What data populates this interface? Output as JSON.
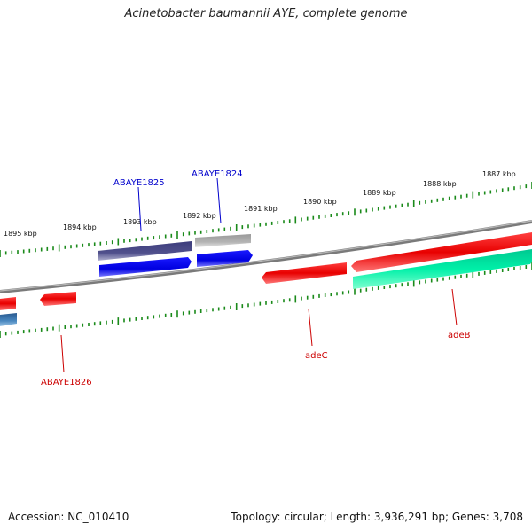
{
  "title": "Acinetobacter baumannii AYE, complete genome",
  "footer": {
    "accession": "Accession: NC_010410",
    "summary": "Topology: circular; Length: 3,936,291 bp; Genes: 3,708"
  },
  "kbp_labels": [
    "1895 kbp",
    "1894 kbp",
    "1893 kbp",
    "1892 kbp",
    "1891 kbp",
    "1890 kbp",
    "1889 kbp",
    "1888 kbp",
    "1887 kbp"
  ],
  "genes": [
    {
      "name": "ABAYE1825",
      "color": "#0000cc"
    },
    {
      "name": "ABAYE1824",
      "color": "#0000cc"
    },
    {
      "name": "ABAYE1826",
      "color": "#cc0000"
    },
    {
      "name": "adeC",
      "color": "#cc0000"
    },
    {
      "name": "adeB",
      "color": "#cc0000"
    }
  ],
  "colors": {
    "backbone": "#888888",
    "tick": "#1a8a1a",
    "red": "#ee0000",
    "blue": "#0000ee",
    "navy": "#4a4a8c",
    "gray": "#aaaaaa",
    "teal": "#00e5a0",
    "steel": "#3a7ab0"
  }
}
